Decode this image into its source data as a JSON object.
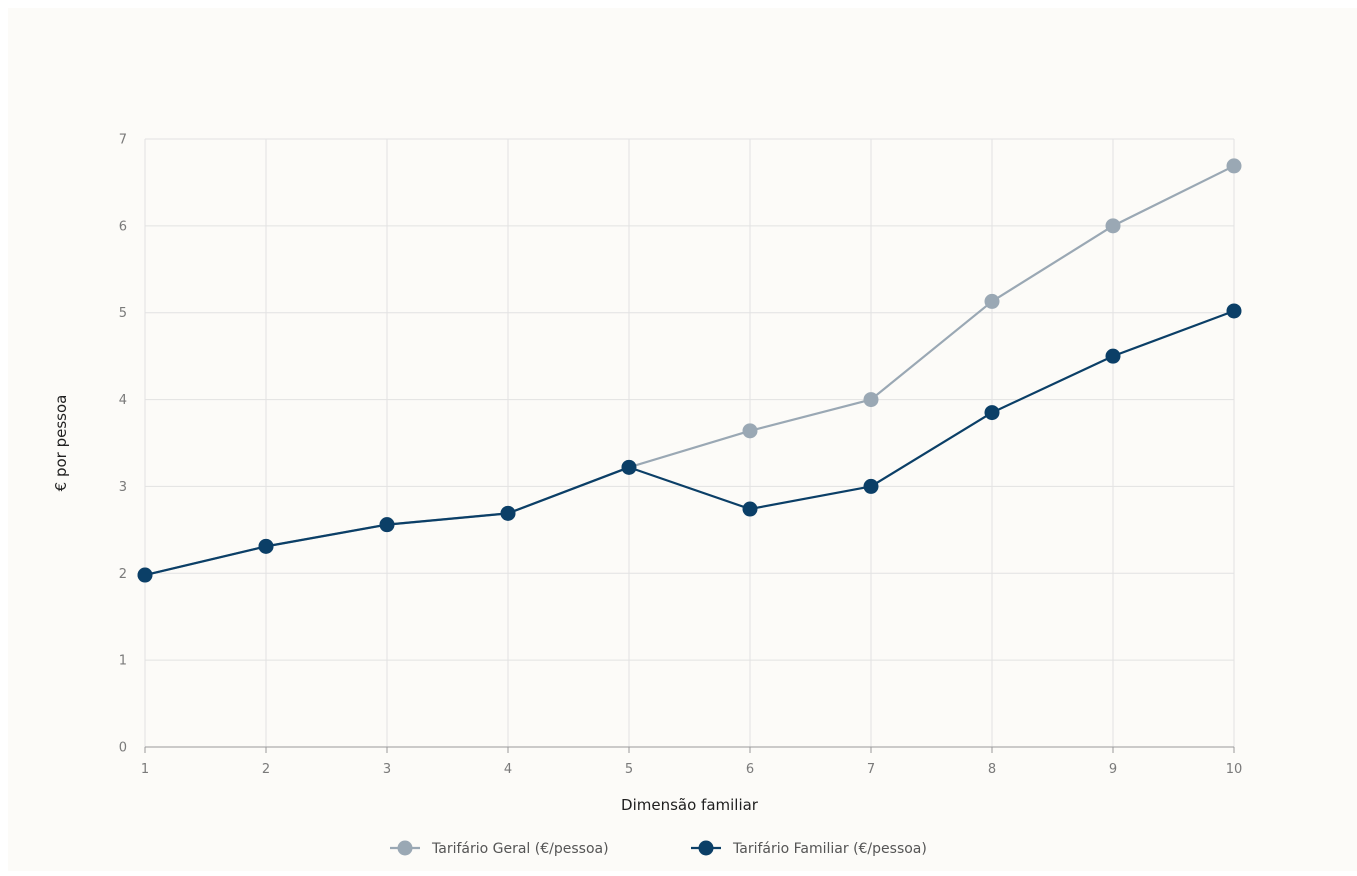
{
  "chart_data": {
    "type": "line",
    "title": "",
    "xlabel": "Dimensão familiar",
    "ylabel": "€ por pessoa",
    "x": [
      1,
      2,
      3,
      4,
      5,
      6,
      7,
      8,
      9,
      10
    ],
    "xlim": [
      1,
      10
    ],
    "ylim": [
      0,
      7
    ],
    "y_ticks": [
      0,
      1,
      2,
      3,
      4,
      5,
      6,
      7
    ],
    "grid": true,
    "legend_position": "bottom",
    "series": [
      {
        "name": "Tarifário Geral (€/pessoa)",
        "color": "#9aa8b4",
        "values": [
          1.98,
          2.31,
          2.56,
          2.69,
          3.22,
          3.64,
          4.0,
          5.13,
          6.0,
          6.69
        ]
      },
      {
        "name": "Tarifário Familiar (€/pessoa)",
        "color": "#0b3f67",
        "values": [
          1.98,
          2.31,
          2.56,
          2.69,
          3.22,
          2.74,
          3.0,
          3.85,
          4.5,
          5.02
        ]
      }
    ]
  }
}
